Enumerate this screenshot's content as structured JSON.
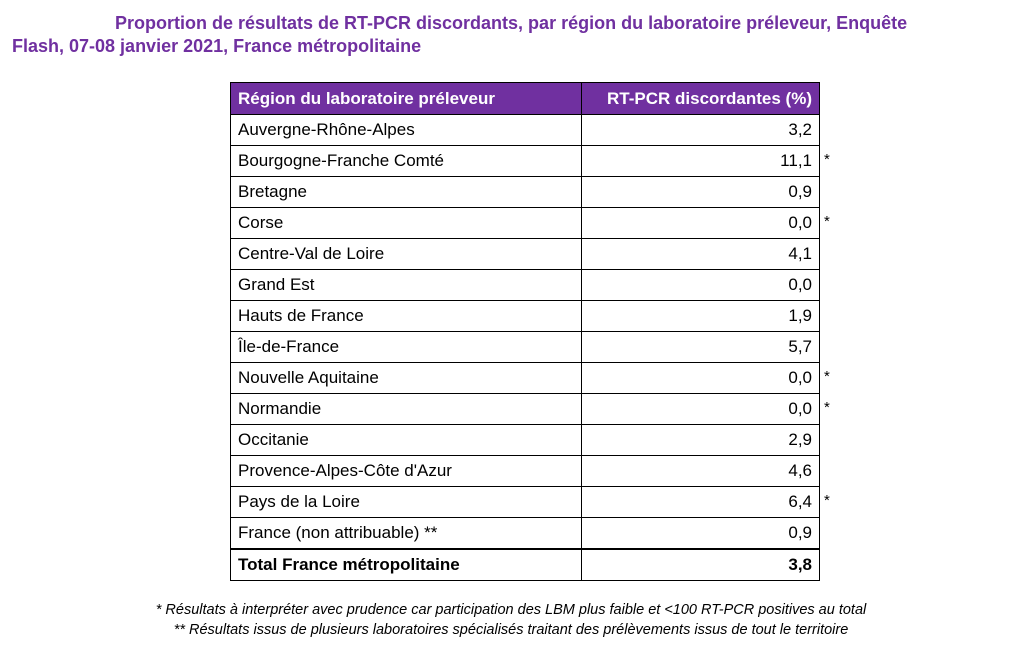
{
  "title": {
    "line1": "Proportion de résultats de RT-PCR discordants, par région du laboratoire préleveur, Enquête",
    "line2": "Flash, 07-08 janvier 2021, France métropolitaine"
  },
  "table": {
    "headers": [
      "Région du laboratoire préleveur",
      "RT-PCR discordantes (%)"
    ],
    "rows": [
      {
        "region": "Auvergne-Rhône-Alpes",
        "value": "3,2",
        "flag": ""
      },
      {
        "region": "Bourgogne-Franche Comté",
        "value": "11,1",
        "flag": "*"
      },
      {
        "region": "Bretagne",
        "value": "0,9",
        "flag": ""
      },
      {
        "region": "Corse",
        "value": "0,0",
        "flag": "*"
      },
      {
        "region": "Centre-Val de Loire",
        "value": "4,1",
        "flag": ""
      },
      {
        "region": "Grand Est",
        "value": "0,0",
        "flag": ""
      },
      {
        "region": "Hauts de France",
        "value": "1,9",
        "flag": ""
      },
      {
        "region": "Île-de-France",
        "value": "5,7",
        "flag": ""
      },
      {
        "region": "Nouvelle Aquitaine",
        "value": "0,0",
        "flag": "*"
      },
      {
        "region": "Normandie",
        "value": "0,0",
        "flag": "*"
      },
      {
        "region": "Occitanie",
        "value": "2,9",
        "flag": ""
      },
      {
        "region": "Provence-Alpes-Côte d'Azur",
        "value": "4,6",
        "flag": ""
      },
      {
        "region": "Pays de la Loire",
        "value": "6,4",
        "flag": "*"
      },
      {
        "region": "France (non attribuable) **",
        "value": "0,9",
        "flag": ""
      }
    ],
    "total": {
      "region": "Total France métropolitaine",
      "value": "3,8"
    }
  },
  "notes": [
    "* Résultats à interpréter avec prudence car participation des LBM plus faible et <100 RT-PCR positives au total",
    "** Résultats issus de plusieurs laboratoires spécialisés traitant des prélèvements issus de tout le territoire"
  ]
}
